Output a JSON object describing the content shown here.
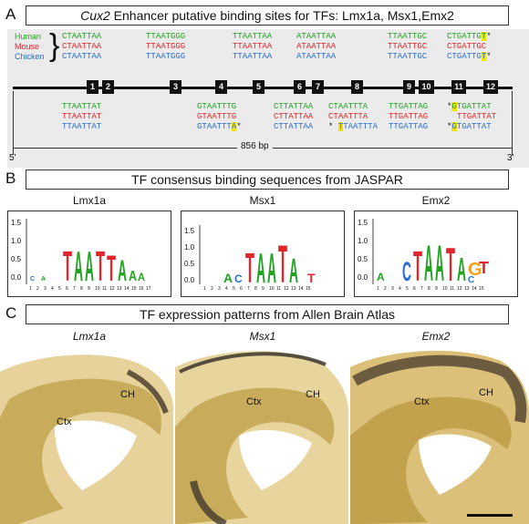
{
  "panelA": {
    "letter": "A",
    "title_gene": "Cux2",
    "title_rest": " Enhancer putative binding sites for TFs: Lmx1a, Msx1,Emx2",
    "species": [
      "Human",
      "Mouse",
      "Chicken"
    ],
    "top_groups": [
      [
        "CTAATTAA",
        "CTAATTAA",
        "CTAATTAA"
      ],
      [
        "TTAATGGG",
        "TTAATGGG",
        "TTAATGGG"
      ],
      [
        "TTAATTAA",
        "TTAATTAA",
        "TTAATTAA"
      ],
      [
        "ATAATTAA",
        "ATAATTAA",
        "ATAATTAA"
      ],
      [
        "TTAATTGC",
        "TTAATTGC",
        "TTAATTGC"
      ],
      [
        "CTGATTG",
        "CTGATTGC",
        "CTGATTG"
      ]
    ],
    "top_last_hl": [
      "T",
      "",
      "T"
    ],
    "top_last_star": [
      "*",
      "",
      "*"
    ],
    "bottom_groups": [
      [
        "TTAATTAT",
        "TTAATTAT",
        "TTAATTAT"
      ],
      [
        "GTAATTTG",
        "GTAATTTG",
        "GTAATTT"
      ],
      [
        "CTTATTAA",
        "CTTATTAA",
        "CTTATTAA"
      ],
      [
        "CTAATTTA",
        "CTAATTTA",
        "TAATTTA"
      ],
      [
        "TTGATTAG",
        "TTGATTAG",
        "TTGATTAG"
      ],
      [
        "TGATTAT",
        "TTGATTAT",
        "TGATTAT"
      ]
    ],
    "sites": [
      "1",
      "2",
      "3",
      "4",
      "5",
      "6",
      "7",
      "8",
      "9",
      "10",
      "11",
      "12"
    ],
    "length_label": "856 bp",
    "five_prime": "5'",
    "three_prime": "3'"
  },
  "panelB": {
    "letter": "B",
    "title": "TF consensus binding sequences from JASPAR",
    "logos": [
      {
        "name": "Lmx1a",
        "positions": [
          "1",
          "2",
          "3",
          "4",
          "5",
          "6",
          "7",
          "8",
          "9",
          "10",
          "11",
          "12",
          "13",
          "14",
          "15",
          "16",
          "17"
        ]
      },
      {
        "name": "Msx1",
        "positions": [
          "1",
          "2",
          "3",
          "4",
          "5",
          "6",
          "7",
          "8",
          "9",
          "10",
          "11",
          "12",
          "13",
          "14",
          "15"
        ]
      },
      {
        "name": "Emx2",
        "positions": [
          "1",
          "2",
          "3",
          "4",
          "5",
          "6",
          "7",
          "8",
          "9",
          "10",
          "11",
          "12",
          "13",
          "14",
          "15"
        ]
      }
    ],
    "yticks": [
      "1.5",
      "1.0",
      "0.5",
      "0.0"
    ]
  },
  "panelC": {
    "letter": "C",
    "title": "TF expression patterns from Allen Brain Atlas",
    "images": [
      {
        "gene": "Lmx1a",
        "ctx": "Ctx",
        "ch": "CH"
      },
      {
        "gene": "Msx1",
        "ctx": "Ctx",
        "ch": "CH"
      },
      {
        "gene": "Emx2",
        "ctx": "Ctx",
        "ch": "CH"
      }
    ]
  },
  "colors": {
    "human": "#22a322",
    "mouse": "#e0262b",
    "chicken": "#2a6fcf",
    "highlight": "#f2e200",
    "A": "#22a322",
    "T": "#e0262b",
    "C": "#2a6fcf",
    "G": "#f0a21a"
  }
}
